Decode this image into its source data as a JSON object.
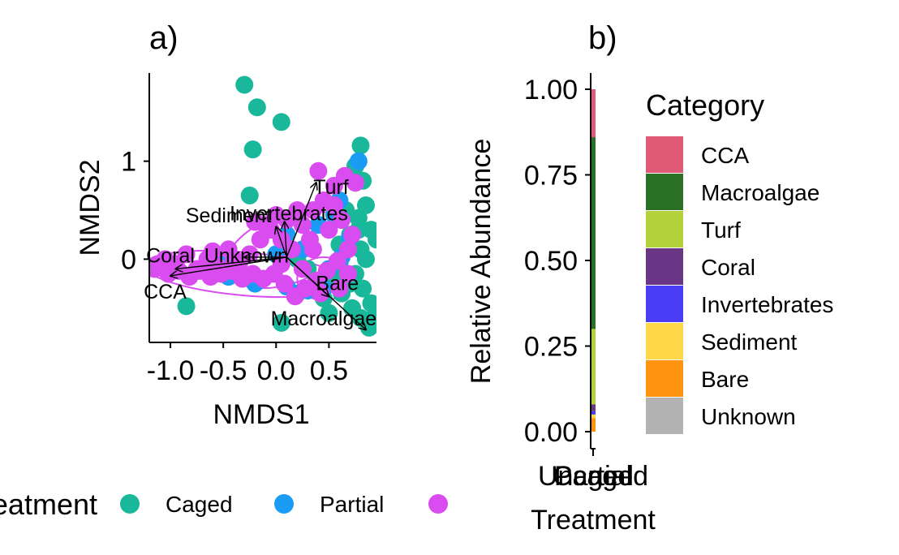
{
  "chart_data": [
    {
      "panel": "a)",
      "type": "scatter",
      "xlabel": "NMDS1",
      "ylabel": "NMDS2",
      "xticks": [
        -1.0,
        -0.5,
        0.0,
        0.5
      ],
      "xtick_labels": [
        "-1.0",
        "-0.5",
        "0.0",
        "0.5"
      ],
      "yticks": [
        0,
        1
      ],
      "ytick_labels": [
        "0",
        "1"
      ],
      "xlim": [
        -1.2,
        0.95
      ],
      "ylim": [
        -0.85,
        1.9
      ],
      "legend": {
        "title": "Treatment",
        "position": "bottom",
        "entries": [
          {
            "name": "Caged",
            "color": "#1ab89a"
          },
          {
            "name": "Partial",
            "color": "#1a9cf5"
          },
          {
            "name": "Uncaged",
            "color": "#d94cf0"
          }
        ]
      },
      "series": [
        {
          "name": "Caged",
          "color": "#1ab89a",
          "points": [
            [
              -0.3,
              1.78
            ],
            [
              -0.18,
              1.55
            ],
            [
              0.05,
              1.4
            ],
            [
              -0.22,
              1.12
            ],
            [
              0.8,
              1.16
            ],
            [
              0.75,
              0.95
            ],
            [
              0.82,
              0.8
            ],
            [
              -0.25,
              0.65
            ],
            [
              0.85,
              0.55
            ],
            [
              0.78,
              0.42
            ],
            [
              0.9,
              0.3
            ],
            [
              0.95,
              0.2
            ],
            [
              0.7,
              0.25
            ],
            [
              0.8,
              0.1
            ],
            [
              0.6,
              -0.05
            ],
            [
              0.75,
              -0.15
            ],
            [
              0.82,
              -0.3
            ],
            [
              0.9,
              -0.45
            ],
            [
              0.8,
              -0.6
            ],
            [
              0.88,
              -0.7
            ],
            [
              0.72,
              -0.5
            ],
            [
              0.62,
              -0.35
            ],
            [
              0.55,
              -0.2
            ],
            [
              0.05,
              -0.65
            ],
            [
              -0.85,
              -0.48
            ],
            [
              0.45,
              -0.4
            ],
            [
              0.3,
              -0.1
            ],
            [
              0.2,
              0.0
            ],
            [
              0.66,
              0.5
            ],
            [
              0.5,
              -0.55
            ],
            [
              0.85,
              0.0
            ],
            [
              0.7,
              -0.25
            ],
            [
              0.78,
              0.3
            ],
            [
              0.92,
              -0.6
            ],
            [
              0.6,
              0.15
            ]
          ]
        },
        {
          "name": "Partial",
          "color": "#1a9cf5",
          "points": [
            [
              -1.42,
              0.15
            ],
            [
              -1.1,
              -0.05
            ],
            [
              -0.75,
              -0.12
            ],
            [
              -0.45,
              -0.18
            ],
            [
              -0.2,
              -0.25
            ],
            [
              0.1,
              -0.28
            ],
            [
              0.3,
              -0.32
            ],
            [
              0.5,
              -0.1
            ],
            [
              0.62,
              0.02
            ],
            [
              0.7,
              0.22
            ],
            [
              0.78,
              1.0
            ],
            [
              0.55,
              0.45
            ],
            [
              0.25,
              0.1
            ],
            [
              0.0,
              0.05
            ],
            [
              -0.5,
              -0.05
            ],
            [
              0.4,
              0.35
            ],
            [
              0.45,
              -0.3
            ],
            [
              0.2,
              -0.35
            ],
            [
              0.6,
              0.6
            ],
            [
              0.1,
              0.25
            ]
          ]
        },
        {
          "name": "Uncaged",
          "color": "#d94cf0",
          "points": [
            [
              -1.15,
              -0.1
            ],
            [
              -1.05,
              0.0
            ],
            [
              -0.95,
              -0.05
            ],
            [
              -0.85,
              0.05
            ],
            [
              -0.75,
              -0.1
            ],
            [
              -0.65,
              0.0
            ],
            [
              -0.55,
              -0.08
            ],
            [
              -0.45,
              0.1
            ],
            [
              -0.35,
              -0.05
            ],
            [
              -0.25,
              0.05
            ],
            [
              -0.15,
              0.2
            ],
            [
              -0.05,
              0.3
            ],
            [
              0.05,
              0.2
            ],
            [
              0.15,
              0.1
            ],
            [
              0.25,
              0.35
            ],
            [
              0.35,
              0.5
            ],
            [
              0.45,
              0.6
            ],
            [
              0.55,
              0.75
            ],
            [
              0.65,
              0.85
            ],
            [
              0.75,
              0.78
            ],
            [
              0.58,
              -0.02
            ],
            [
              0.48,
              -0.12
            ],
            [
              0.38,
              -0.22
            ],
            [
              0.28,
              -0.3
            ],
            [
              0.18,
              -0.38
            ],
            [
              0.08,
              -0.25
            ],
            [
              -0.02,
              -0.15
            ],
            [
              -0.12,
              -0.2
            ],
            [
              -0.22,
              -0.15
            ],
            [
              -0.32,
              -0.2
            ],
            [
              -0.42,
              -0.12
            ],
            [
              -0.52,
              -0.15
            ],
            [
              -0.62,
              -0.18
            ],
            [
              -0.72,
              -0.12
            ],
            [
              -0.82,
              -0.18
            ],
            [
              -0.92,
              -0.12
            ],
            [
              -1.02,
              -0.15
            ],
            [
              -1.12,
              -0.05
            ],
            [
              0.62,
              0.4
            ],
            [
              0.72,
              0.25
            ],
            [
              0.68,
              0.1
            ],
            [
              0.4,
              0.9
            ],
            [
              0.55,
              0.55
            ],
            [
              0.32,
              0.2
            ],
            [
              0.1,
              0.4
            ],
            [
              -0.1,
              0.35
            ],
            [
              0.0,
              0.45
            ],
            [
              0.2,
              0.5
            ],
            [
              0.5,
              0.3
            ],
            [
              0.42,
              -0.35
            ],
            [
              0.6,
              -0.3
            ],
            [
              0.68,
              -0.15
            ],
            [
              -0.6,
              0.08
            ],
            [
              -0.4,
              0.0
            ],
            [
              -0.2,
              0.38
            ],
            [
              0.05,
              -0.05
            ],
            [
              0.25,
              -0.1
            ],
            [
              0.35,
              0.1
            ]
          ]
        }
      ],
      "ellipses": [
        {
          "cx": -0.3,
          "cy": -0.15,
          "rx": 0.95,
          "ry": 0.22,
          "angle_deg": -5,
          "color": "#d94cf0"
        },
        {
          "cx": 0.1,
          "cy": 0.1,
          "rx": 0.6,
          "ry": 0.35,
          "angle_deg": 20,
          "color": "#d94cf0"
        },
        {
          "cx": 0.45,
          "cy": -0.2,
          "rx": 0.25,
          "ry": 0.22,
          "angle_deg": 0,
          "color": "#d94cf0"
        }
      ],
      "vectors": [
        {
          "label": "Turf",
          "x": 0.38,
          "y": 0.78,
          "label_x": 0.52,
          "label_y": 0.72
        },
        {
          "label": "Invertebrates",
          "x": 0.08,
          "y": 0.38,
          "label_x": 0.12,
          "label_y": 0.45
        },
        {
          "label": "Sediment",
          "x": 0.0,
          "y": 0.33,
          "label_x": -0.45,
          "label_y": 0.43
        },
        {
          "label": "Coral",
          "x": -0.95,
          "y": -0.1,
          "label_x": -1.0,
          "label_y": 0.02
        },
        {
          "label": "Unknown",
          "x": -0.3,
          "y": 0.02,
          "label_x": -0.28,
          "label_y": 0.02
        },
        {
          "label": "CCA",
          "x": -1.0,
          "y": -0.17,
          "label_x": -1.05,
          "label_y": -0.35
        },
        {
          "label": "Bare",
          "x": 0.5,
          "y": -0.38,
          "label_x": 0.58,
          "label_y": -0.26
        },
        {
          "label": "Macroalgae",
          "x": 0.85,
          "y": -0.72,
          "label_x": 0.45,
          "label_y": -0.62
        }
      ]
    },
    {
      "panel": "b)",
      "type": "bar",
      "stacked": true,
      "xlabel": "Treatment",
      "ylabel": "Relative Abundance",
      "categories": [
        "Uncaged",
        "Partial",
        "Caged"
      ],
      "yticks": [
        0.0,
        0.25,
        0.5,
        0.75,
        1.0
      ],
      "ytick_labels": [
        "0.00",
        "0.25",
        "0.50",
        "0.75",
        "1.00"
      ],
      "ylim": [
        0,
        1.0
      ],
      "legend": {
        "title": "Category",
        "position": "right",
        "entries": [
          {
            "name": "CCA",
            "color": "#e05a78"
          },
          {
            "name": "Macroalgae",
            "color": "#2a7025"
          },
          {
            "name": "Turf",
            "color": "#b2d13a"
          },
          {
            "name": "Coral",
            "color": "#6a3585"
          },
          {
            "name": "Invertebrates",
            "color": "#4a3df5"
          },
          {
            "name": "Sediment",
            "color": "#ffd84a"
          },
          {
            "name": "Bare",
            "color": "#ff9410"
          },
          {
            "name": "Unknown",
            "color": "#b3b3b3"
          }
        ]
      },
      "stack_bottom_to_top": [
        {
          "name": "Bare",
          "value": 0.04
        },
        {
          "name": "Sediment",
          "value": 0.01
        },
        {
          "name": "Invertebrates",
          "value": 0.01
        },
        {
          "name": "Coral",
          "value": 0.02
        },
        {
          "name": "Turf",
          "value": 0.22
        },
        {
          "name": "Macroalgae",
          "value": 0.56
        },
        {
          "name": "CCA",
          "value": 0.14
        }
      ]
    }
  ]
}
